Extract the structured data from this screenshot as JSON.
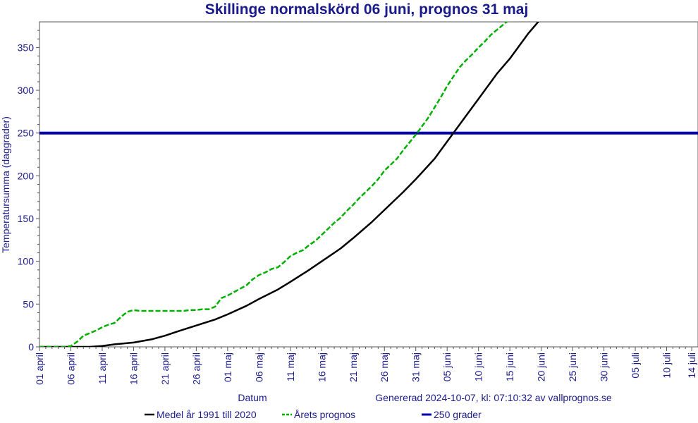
{
  "chart_data": {
    "type": "line",
    "title": "Skillinge normalskörd 06 juni, prognos 31 maj",
    "xlabel": "Datum",
    "ylabel": "Temperatursumma (daggrader)",
    "footnote": "Genererad 2024-10-07, kl: 07:10:32 av vallprognos.se",
    "x_tick_labels": [
      "01 april",
      "06 april",
      "11 april",
      "16 april",
      "21 april",
      "26 april",
      "01 maj",
      "06 maj",
      "11 maj",
      "16 maj",
      "21 maj",
      "26 maj",
      "31 maj",
      "05 juni",
      "10 juni",
      "15 juni",
      "20 juni",
      "25 juni",
      "30 juni",
      "05 juli",
      "10 juli",
      "14 juli"
    ],
    "x_tick_days": [
      0,
      5,
      10,
      15,
      20,
      25,
      30,
      35,
      40,
      45,
      50,
      55,
      60,
      65,
      70,
      75,
      80,
      85,
      90,
      95,
      100,
      104
    ],
    "xlim": [
      0,
      105
    ],
    "ylim": [
      0,
      380
    ],
    "y_ticks": [
      0,
      50,
      100,
      150,
      200,
      250,
      300,
      350
    ],
    "grid": false,
    "legend_position": "bottom",
    "series": [
      {
        "name": "Medel år 1991 till 2020",
        "color": "#000000",
        "style": "solid",
        "x": [
          0,
          5,
          8,
          10,
          12,
          15,
          18,
          20,
          22,
          25,
          28,
          30,
          33,
          35,
          38,
          40,
          43,
          45,
          48,
          50,
          53,
          55,
          58,
          60,
          63,
          65,
          68,
          70,
          73,
          75,
          78,
          80,
          82
        ],
        "y": [
          0,
          0,
          0,
          1,
          3,
          5,
          9,
          13,
          18,
          25,
          32,
          38,
          48,
          56,
          67,
          76,
          90,
          100,
          115,
          127,
          146,
          160,
          181,
          196,
          220,
          240,
          270,
          290,
          320,
          337,
          367,
          384,
          402
        ]
      },
      {
        "name": "Årets prognos",
        "color": "#00b000",
        "style": "dashed",
        "x": [
          0,
          4,
          5,
          6,
          7,
          8,
          9,
          10,
          11,
          12,
          13,
          14,
          15,
          16,
          17,
          18,
          19,
          20,
          21,
          22,
          23,
          24,
          25,
          26,
          27,
          28,
          29,
          30,
          31,
          32,
          33,
          34,
          35,
          36,
          37,
          38,
          39,
          40,
          41,
          42,
          43,
          44,
          45,
          46,
          47,
          48,
          49,
          50,
          51,
          52,
          53,
          54,
          55,
          56,
          57,
          58,
          59,
          60,
          61,
          62,
          63,
          64,
          65,
          66,
          67,
          68,
          69,
          70,
          71,
          72,
          73,
          74,
          75,
          76,
          77,
          78
        ],
        "y": [
          0,
          0,
          1,
          6,
          13,
          16,
          19,
          23,
          26,
          28,
          35,
          41,
          43,
          42,
          42,
          42,
          42,
          42,
          42,
          42,
          42,
          43,
          43,
          44,
          44,
          47,
          57,
          60,
          64,
          68,
          72,
          79,
          84,
          87,
          91,
          93,
          99,
          106,
          110,
          113,
          119,
          124,
          131,
          138,
          145,
          151,
          159,
          166,
          174,
          181,
          188,
          196,
          206,
          213,
          220,
          230,
          239,
          248,
          258,
          268,
          280,
          292,
          305,
          316,
          327,
          335,
          342,
          350,
          357,
          365,
          371,
          377,
          383,
          388,
          394,
          400
        ]
      },
      {
        "name": "250 grader",
        "color": "#0000aa",
        "style": "solid",
        "x": [
          0,
          105
        ],
        "y": [
          250,
          250
        ]
      }
    ]
  }
}
